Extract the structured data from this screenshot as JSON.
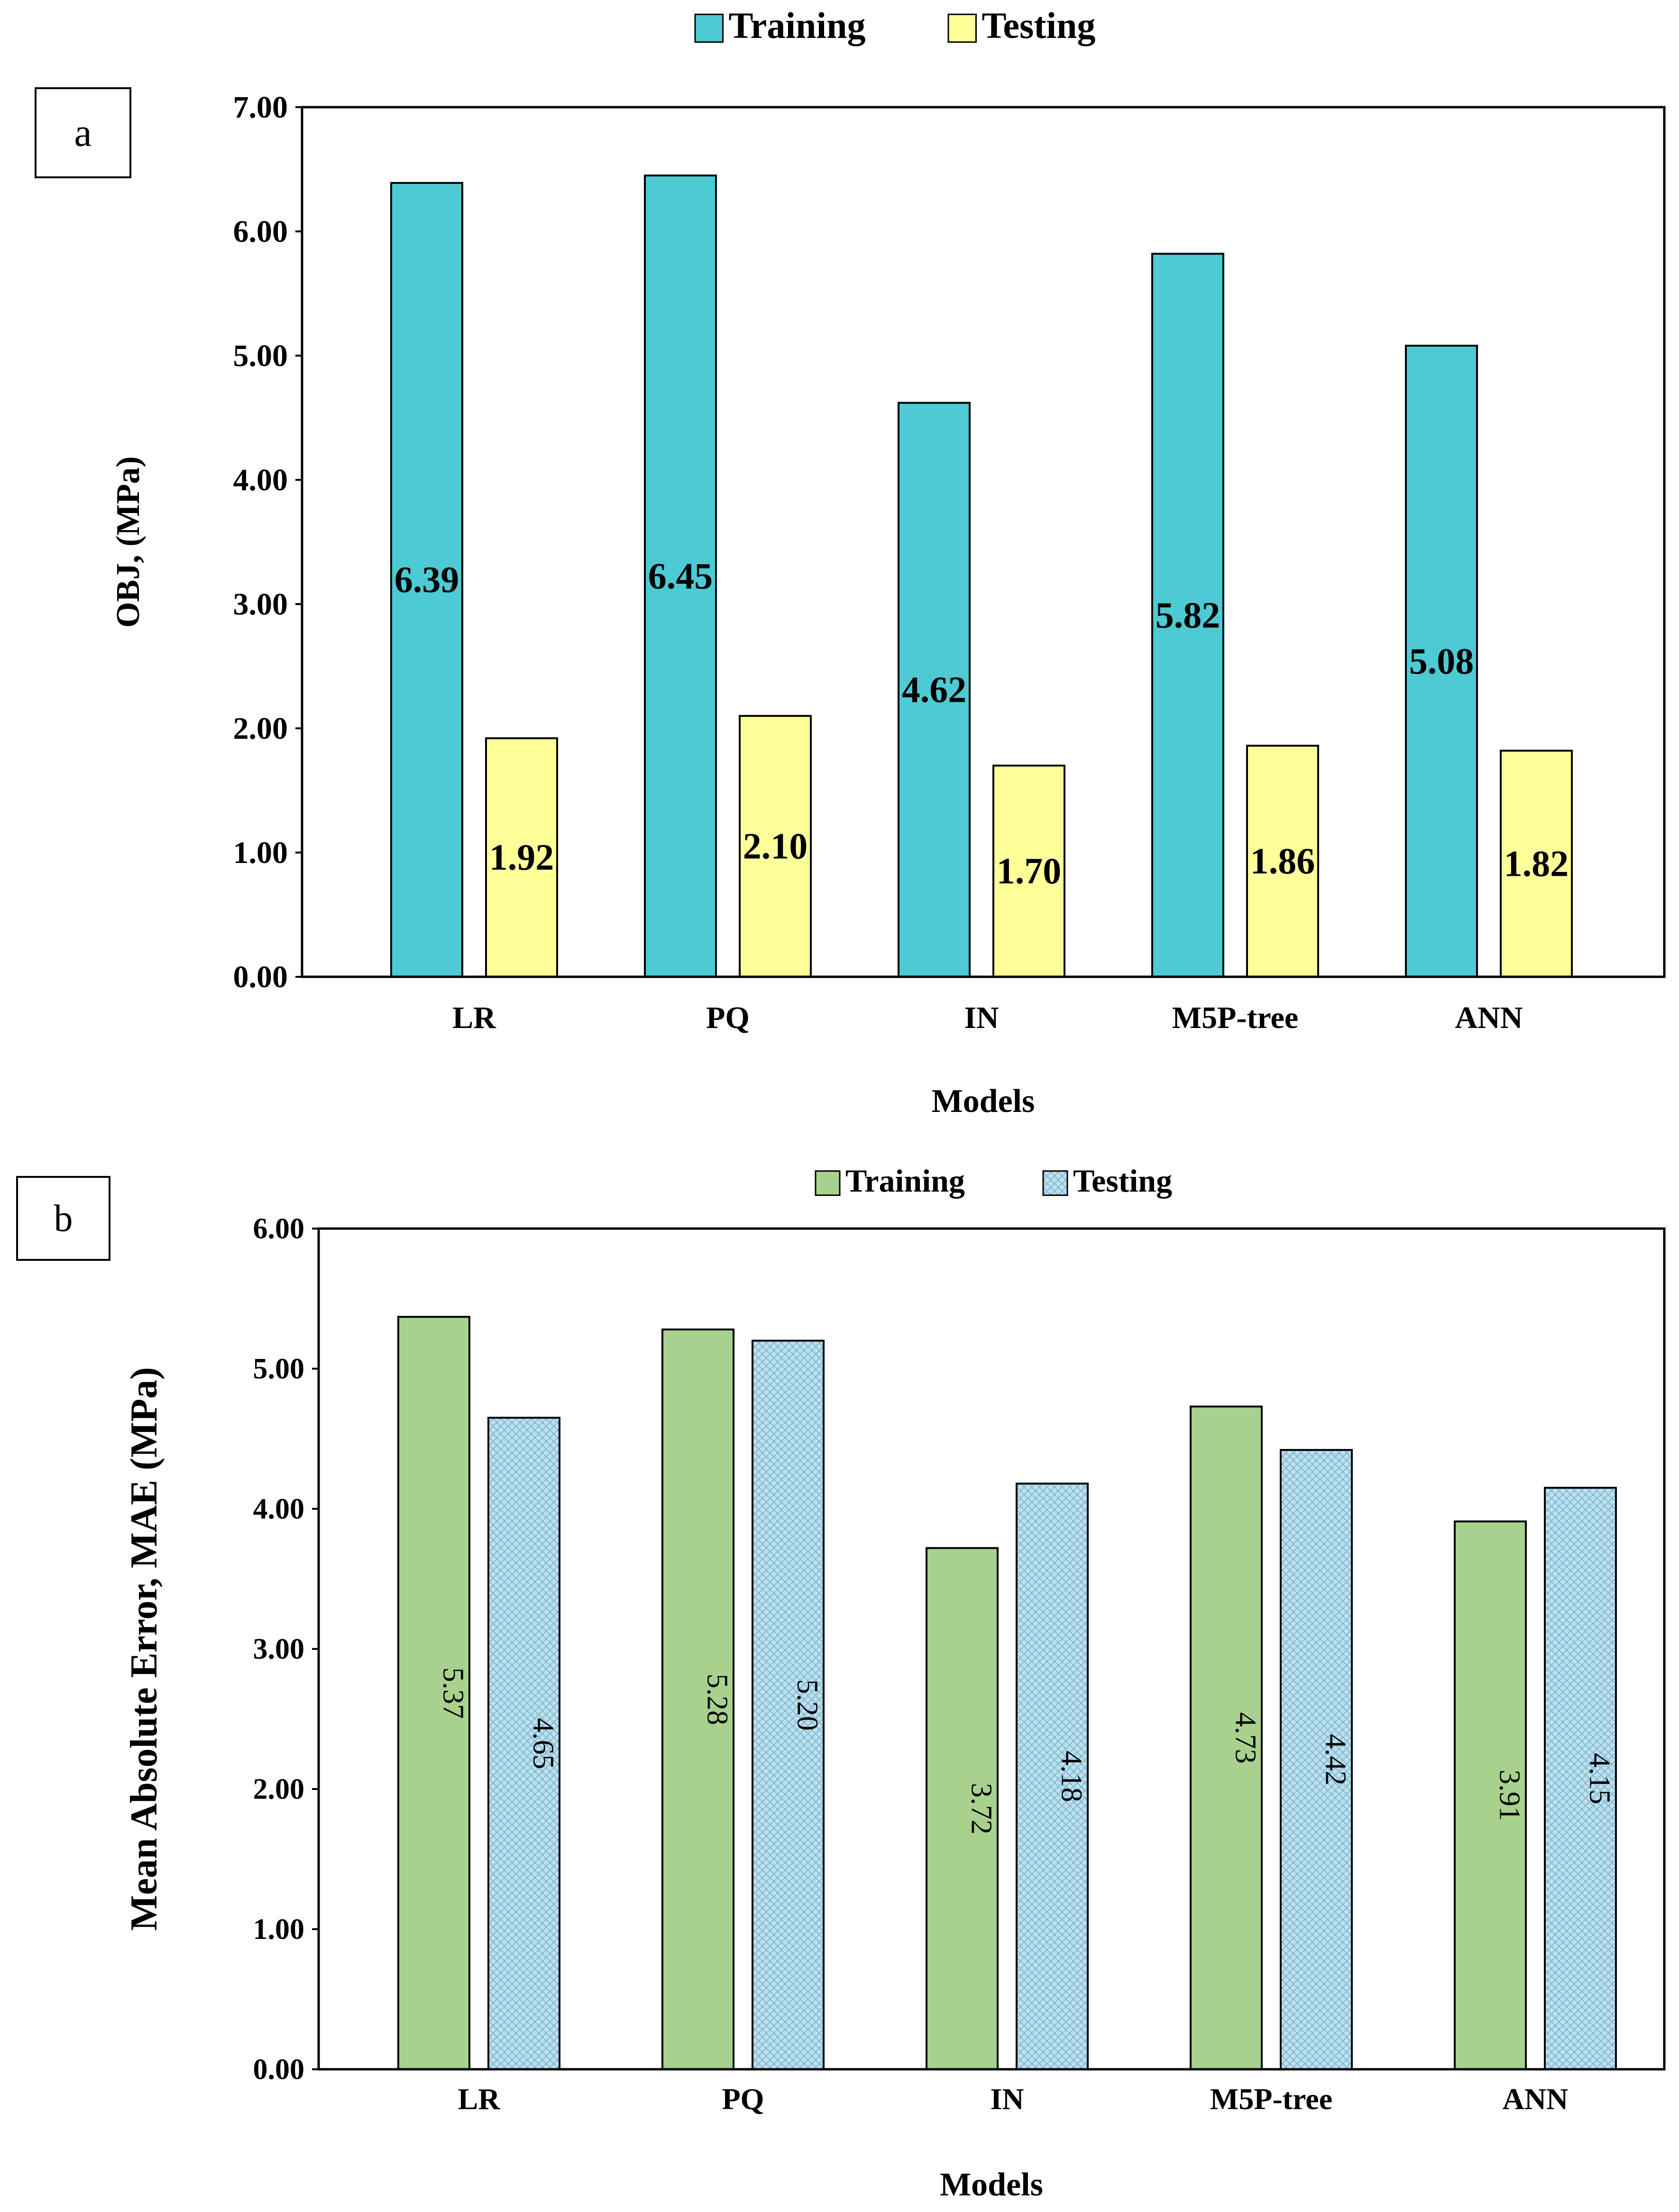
{
  "chart_data": [
    {
      "panel_label": "a",
      "type": "bar",
      "categories": [
        "LR",
        "PQ",
        "IN",
        "M5P-tree",
        "ANN"
      ],
      "series": [
        {
          "name": "Training",
          "values": [
            6.39,
            6.45,
            4.62,
            5.82,
            5.08
          ],
          "labels": [
            "6.39",
            "6.45",
            "4.62",
            "5.82",
            "5.08"
          ],
          "color": "#4DCAD3"
        },
        {
          "name": "Testing",
          "values": [
            1.92,
            2.1,
            1.7,
            1.86,
            1.82
          ],
          "labels": [
            "1.92",
            "2.10",
            "1.70",
            "1.86",
            "1.82"
          ],
          "color": "#FFFF99"
        }
      ],
      "xlabel": "Models",
      "ylabel": "OBJ, (MPa)",
      "ylim": [
        0,
        7
      ],
      "yticks": [
        "0.00",
        "1.00",
        "2.00",
        "3.00",
        "4.00",
        "5.00",
        "6.00",
        "7.00"
      ],
      "grid": false,
      "legend_position": "top-center",
      "data_label_orientation": "horizontal"
    },
    {
      "panel_label": "b",
      "type": "bar",
      "categories": [
        "LR",
        "PQ",
        "IN",
        "M5P-tree",
        "ANN"
      ],
      "series": [
        {
          "name": "Training",
          "values": [
            5.37,
            5.28,
            3.72,
            4.73,
            3.91
          ],
          "labels": [
            "5.37",
            "5.28",
            "3.72",
            "4.73",
            "3.91"
          ],
          "color": "#A9D18E"
        },
        {
          "name": "Testing",
          "values": [
            4.65,
            5.2,
            4.18,
            4.42,
            4.15
          ],
          "labels": [
            "4.65",
            "5.20",
            "4.18",
            "4.42",
            "4.15"
          ],
          "color": "#BDE0EE",
          "pattern": "crosshatch"
        }
      ],
      "xlabel": "Models",
      "ylabel": "Mean Absolute Error, MAE (MPa)",
      "ylim": [
        0,
        6
      ],
      "yticks": [
        "0.00",
        "1.00",
        "2.00",
        "3.00",
        "4.00",
        "5.00",
        "6.00"
      ],
      "grid": false,
      "legend_position": "top-center",
      "data_label_orientation": "vertical"
    }
  ]
}
